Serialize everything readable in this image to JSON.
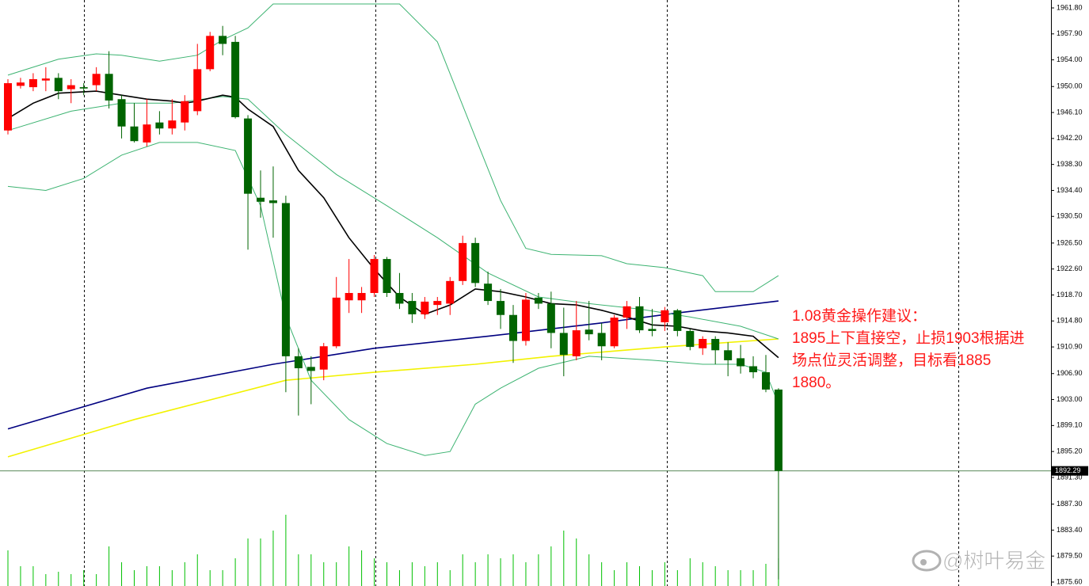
{
  "chart_data": {
    "type": "candlestick",
    "ylim": [
      1875.6,
      1961.8
    ],
    "yticks": [
      {
        "value": 1961.8,
        "label": "1961.80"
      },
      {
        "value": 1957.9,
        "label": "1957.90"
      },
      {
        "value": 1954,
        "label": "1954.00"
      },
      {
        "value": 1950,
        "label": "1950.00"
      },
      {
        "value": 1946.1,
        "label": "1946.10"
      },
      {
        "value": 1942.2,
        "label": "1942.20"
      },
      {
        "value": 1938.3,
        "label": "1938.30"
      },
      {
        "value": 1934.4,
        "label": "1934.40"
      },
      {
        "value": 1930.5,
        "label": "1930.50"
      },
      {
        "value": 1926.5,
        "label": "1926.50"
      },
      {
        "value": 1922.6,
        "label": "1922.60"
      },
      {
        "value": 1918.7,
        "label": "1918.70"
      },
      {
        "value": 1914.8,
        "label": "1914.80"
      },
      {
        "value": 1910.9,
        "label": "1910.90"
      },
      {
        "value": 1906.9,
        "label": "1906.90"
      },
      {
        "value": 1903,
        "label": "1903.00"
      },
      {
        "value": 1899.1,
        "label": "1899.10"
      },
      {
        "value": 1895.2,
        "label": "1895.20"
      },
      {
        "value": 1891.3,
        "label": "1891.30"
      },
      {
        "value": 1887.3,
        "label": "1887.30"
      },
      {
        "value": 1883.4,
        "label": "1883.40"
      },
      {
        "value": 1879.5,
        "label": "1879.50"
      },
      {
        "value": 1875.6,
        "label": "1875.60"
      }
    ],
    "up_color": "#ff0000",
    "down_color": "#006400",
    "open": [
      1943.4,
      1950.1,
      1949.9,
      1950.9,
      1951.3,
      1949.6,
      1949.9,
      1950.2,
      1951.9,
      1948.1,
      1944.0,
      1941.6,
      1944.6,
      1943.7,
      1944.6,
      1946.3,
      1952.6,
      1957.6,
      1956.7,
      1945.2,
      1933.3,
      1932.9,
      1932.5,
      1909.5,
      1907.9,
      1907.5,
      1911.0,
      1917.9,
      1917.9,
      1919.0,
      1924.1,
      1919.0,
      1917.8,
      1915.8,
      1917.2,
      1917.4,
      1920.8,
      1926.5,
      1920.4,
      1917.8,
      1915.7,
      1911.8,
      1918.3,
      1917.4,
      1913.0,
      1909.5,
      1913.5,
      1913.0,
      1911.0,
      1915.3,
      1917.0,
      1913.6,
      1914.6,
      1916.4,
      1913.3,
      1910.7,
      1912.1,
      1910.4,
      1909.2,
      1908.0,
      1907.1,
      1904.5
    ],
    "high": [
      1951.1,
      1951.3,
      1952.0,
      1952.9,
      1952.0,
      1951.1,
      1950.5,
      1952.9,
      1955.3,
      1948.7,
      1947.5,
      1948.1,
      1946.3,
      1948.1,
      1948.7,
      1956.4,
      1958.2,
      1959.1,
      1957.6,
      1945.7,
      1937.4,
      1938.0,
      1933.6,
      1910.7,
      1909.5,
      1911.5,
      1921.4,
      1924.1,
      1919.9,
      1924.7,
      1924.4,
      1922.0,
      1919.0,
      1918.4,
      1918.4,
      1921.4,
      1927.6,
      1927.3,
      1922.2,
      1919.6,
      1917.2,
      1919.0,
      1919.0,
      1919.2,
      1916.8,
      1917.8,
      1917.8,
      1914.5,
      1915.7,
      1917.8,
      1918.4,
      1916.6,
      1916.9,
      1916.6,
      1913.6,
      1912.5,
      1912.5,
      1911.6,
      1911.2,
      1909.5,
      1909.7,
      1904.7
    ],
    "low": [
      1942.8,
      1949.7,
      1949.3,
      1949.3,
      1948.1,
      1947.5,
      1948.7,
      1949.3,
      1946.7,
      1942.2,
      1941.6,
      1941.0,
      1942.8,
      1942.8,
      1943.4,
      1945.7,
      1952.3,
      1954.7,
      1945.2,
      1925.5,
      1930.3,
      1927.3,
      1904.1,
      1900.6,
      1902.3,
      1905.9,
      1910.7,
      1916.0,
      1916.0,
      1918.4,
      1918.4,
      1916.6,
      1914.5,
      1915.1,
      1915.7,
      1915.7,
      1920.2,
      1919.9,
      1917.2,
      1913.6,
      1908.5,
      1911.1,
      1916.6,
      1910.7,
      1906.5,
      1908.9,
      1911.9,
      1908.9,
      1910.7,
      1913.6,
      1913.0,
      1912.5,
      1913.3,
      1912.5,
      1910.4,
      1909.7,
      1908.3,
      1906.5,
      1906.9,
      1906.2,
      1904.1,
      1876.0
    ],
    "close": [
      1950.5,
      1950.6,
      1951.1,
      1951.2,
      1949.3,
      1950.2,
      1949.7,
      1951.9,
      1947.9,
      1944.0,
      1941.8,
      1944.3,
      1943.7,
      1944.9,
      1947.8,
      1952.6,
      1957.6,
      1956.4,
      1945.4,
      1933.9,
      1932.7,
      1932.5,
      1909.5,
      1907.7,
      1907.3,
      1911.0,
      1918.3,
      1919.0,
      1919.0,
      1924.1,
      1919.0,
      1917.4,
      1915.8,
      1917.7,
      1917.8,
      1920.8,
      1926.5,
      1920.5,
      1917.8,
      1915.7,
      1911.8,
      1918.0,
      1917.4,
      1913.0,
      1909.7,
      1913.4,
      1912.8,
      1911.0,
      1915.3,
      1917.0,
      1913.4,
      1913.3,
      1916.4,
      1913.3,
      1910.9,
      1912.1,
      1910.4,
      1908.9,
      1908.0,
      1907.1,
      1904.5,
      1892.29
    ],
    "volume": [
      45,
      25,
      25,
      15,
      18,
      15,
      20,
      15,
      50,
      30,
      20,
      25,
      25,
      20,
      30,
      40,
      20,
      20,
      35,
      60,
      60,
      70,
      90,
      40,
      40,
      30,
      30,
      50,
      45,
      35,
      30,
      20,
      30,
      25,
      30,
      20,
      40,
      30,
      40,
      35,
      40,
      30,
      40,
      50,
      70,
      60,
      40,
      30,
      20,
      30,
      25,
      20,
      30,
      20,
      35,
      30,
      25,
      20,
      20,
      20,
      28,
      35
    ],
    "volume_color": "#00c000",
    "overlays": [
      {
        "color": "#000080",
        "x": [
          0,
          11,
          21,
          29,
          38,
          47,
          53,
          61
        ],
        "values": [
          1898.6,
          1904.7,
          1908.3,
          1910.7,
          1912.5,
          1914.5,
          1916.0,
          1917.8
        ]
      },
      {
        "color": "#f2f200",
        "x": [
          0,
          10,
          22,
          29,
          37,
          43,
          52,
          61
        ],
        "values": [
          1894.4,
          1900.0,
          1905.9,
          1907.1,
          1908.3,
          1909.5,
          1910.9,
          1912.1
        ]
      },
      {
        "color": "#3cb371",
        "x": [
          0,
          4,
          7,
          9,
          12,
          15,
          17,
          19,
          21,
          31,
          34,
          37,
          39,
          41,
          43,
          47,
          49,
          52,
          55,
          56,
          59,
          61
        ],
        "values": [
          1951.7,
          1954.1,
          1954.9,
          1954.7,
          1953.8,
          1954.7,
          1957.0,
          1958.8,
          1962.4,
          1962.4,
          1956.7,
          1942.4,
          1932.9,
          1925.7,
          1924.8,
          1924.6,
          1923.4,
          1922.8,
          1921.6,
          1919.2,
          1919.2,
          1921.6
        ]
      },
      {
        "color": "#3cb371",
        "x": [
          0,
          5,
          9,
          13,
          17,
          19,
          22,
          26,
          30,
          34,
          38,
          42,
          46,
          50,
          54,
          58,
          61
        ],
        "values": [
          1943.4,
          1946.3,
          1947.5,
          1947.5,
          1948.5,
          1948.1,
          1942.8,
          1936.8,
          1932.1,
          1927.3,
          1922.0,
          1918.4,
          1917.4,
          1916.6,
          1915.4,
          1914.0,
          1912.1
        ]
      },
      {
        "color": "#3cb371",
        "x": [
          0,
          3,
          6,
          9,
          12,
          15,
          18,
          20,
          22,
          24,
          27,
          30,
          33,
          35,
          37,
          39,
          42,
          46,
          51,
          55,
          58,
          60,
          61
        ],
        "values": [
          1935.0,
          1934.4,
          1936.2,
          1939.7,
          1941.6,
          1941.6,
          1940.4,
          1932.1,
          1915.4,
          1905.9,
          1900.0,
          1896.4,
          1894.6,
          1895.2,
          1902.3,
          1904.7,
          1907.7,
          1909.5,
          1908.9,
          1908.3,
          1908.3,
          1907.1,
          1902.3
        ]
      },
      {
        "color": "#000000",
        "x": [
          0,
          2,
          4,
          7,
          9,
          11,
          13,
          14,
          15,
          17,
          18,
          19,
          21,
          23,
          25,
          27,
          29,
          31,
          33,
          35,
          37,
          39,
          41,
          43,
          45,
          47,
          49,
          51,
          53,
          55,
          57,
          59,
          61
        ],
        "values": [
          1945.2,
          1947.5,
          1949.0,
          1949.3,
          1948.7,
          1948.1,
          1947.8,
          1947.5,
          1947.8,
          1948.7,
          1948.4,
          1946.6,
          1944.0,
          1937.4,
          1933.3,
          1927.3,
          1922.6,
          1918.4,
          1915.8,
          1917.2,
          1919.6,
          1919.2,
          1918.4,
          1917.4,
          1917.2,
          1916.4,
          1915.4,
          1914.2,
          1914.0,
          1913.3,
          1913.0,
          1912.5,
          1909.3
        ]
      }
    ],
    "last_price": 1892.29,
    "annotation": [
      "1.08黄金操作建议：",
      "1895上下直接空，止损1903根据进",
      "场点位灵活调整，目标看1885",
      "1880。"
    ],
    "watermark": "@树叶易金"
  }
}
